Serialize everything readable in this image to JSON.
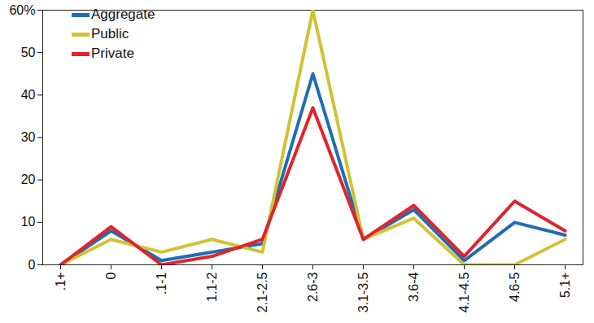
{
  "chart_data": {
    "type": "line",
    "categories": [
      ".1+",
      "0",
      ".1-1",
      "1.1-2",
      "2.1-2.5",
      "2.6-3",
      "3.1-3.5",
      "3.6-4",
      "4.1-4.5",
      "4.6-5",
      "5.1+"
    ],
    "series": [
      {
        "name": "Aggregate",
        "color": "#1f6db3",
        "values": [
          0,
          8,
          1,
          3,
          5,
          45,
          6,
          13,
          1,
          10,
          7
        ]
      },
      {
        "name": "Public",
        "color": "#d2c233",
        "values": [
          0,
          6,
          3,
          6,
          3,
          60,
          6,
          11,
          0,
          0,
          6
        ]
      },
      {
        "name": "Private",
        "color": "#e1232b",
        "values": [
          0,
          9,
          0,
          2,
          6,
          37,
          6,
          14,
          2,
          15,
          8
        ]
      }
    ],
    "ylim": [
      0,
      60
    ],
    "yticks": [
      0,
      10,
      20,
      30,
      40,
      50,
      {
        "value": 60,
        "label": "60%"
      }
    ],
    "legend": "top-left",
    "grid": false
  }
}
